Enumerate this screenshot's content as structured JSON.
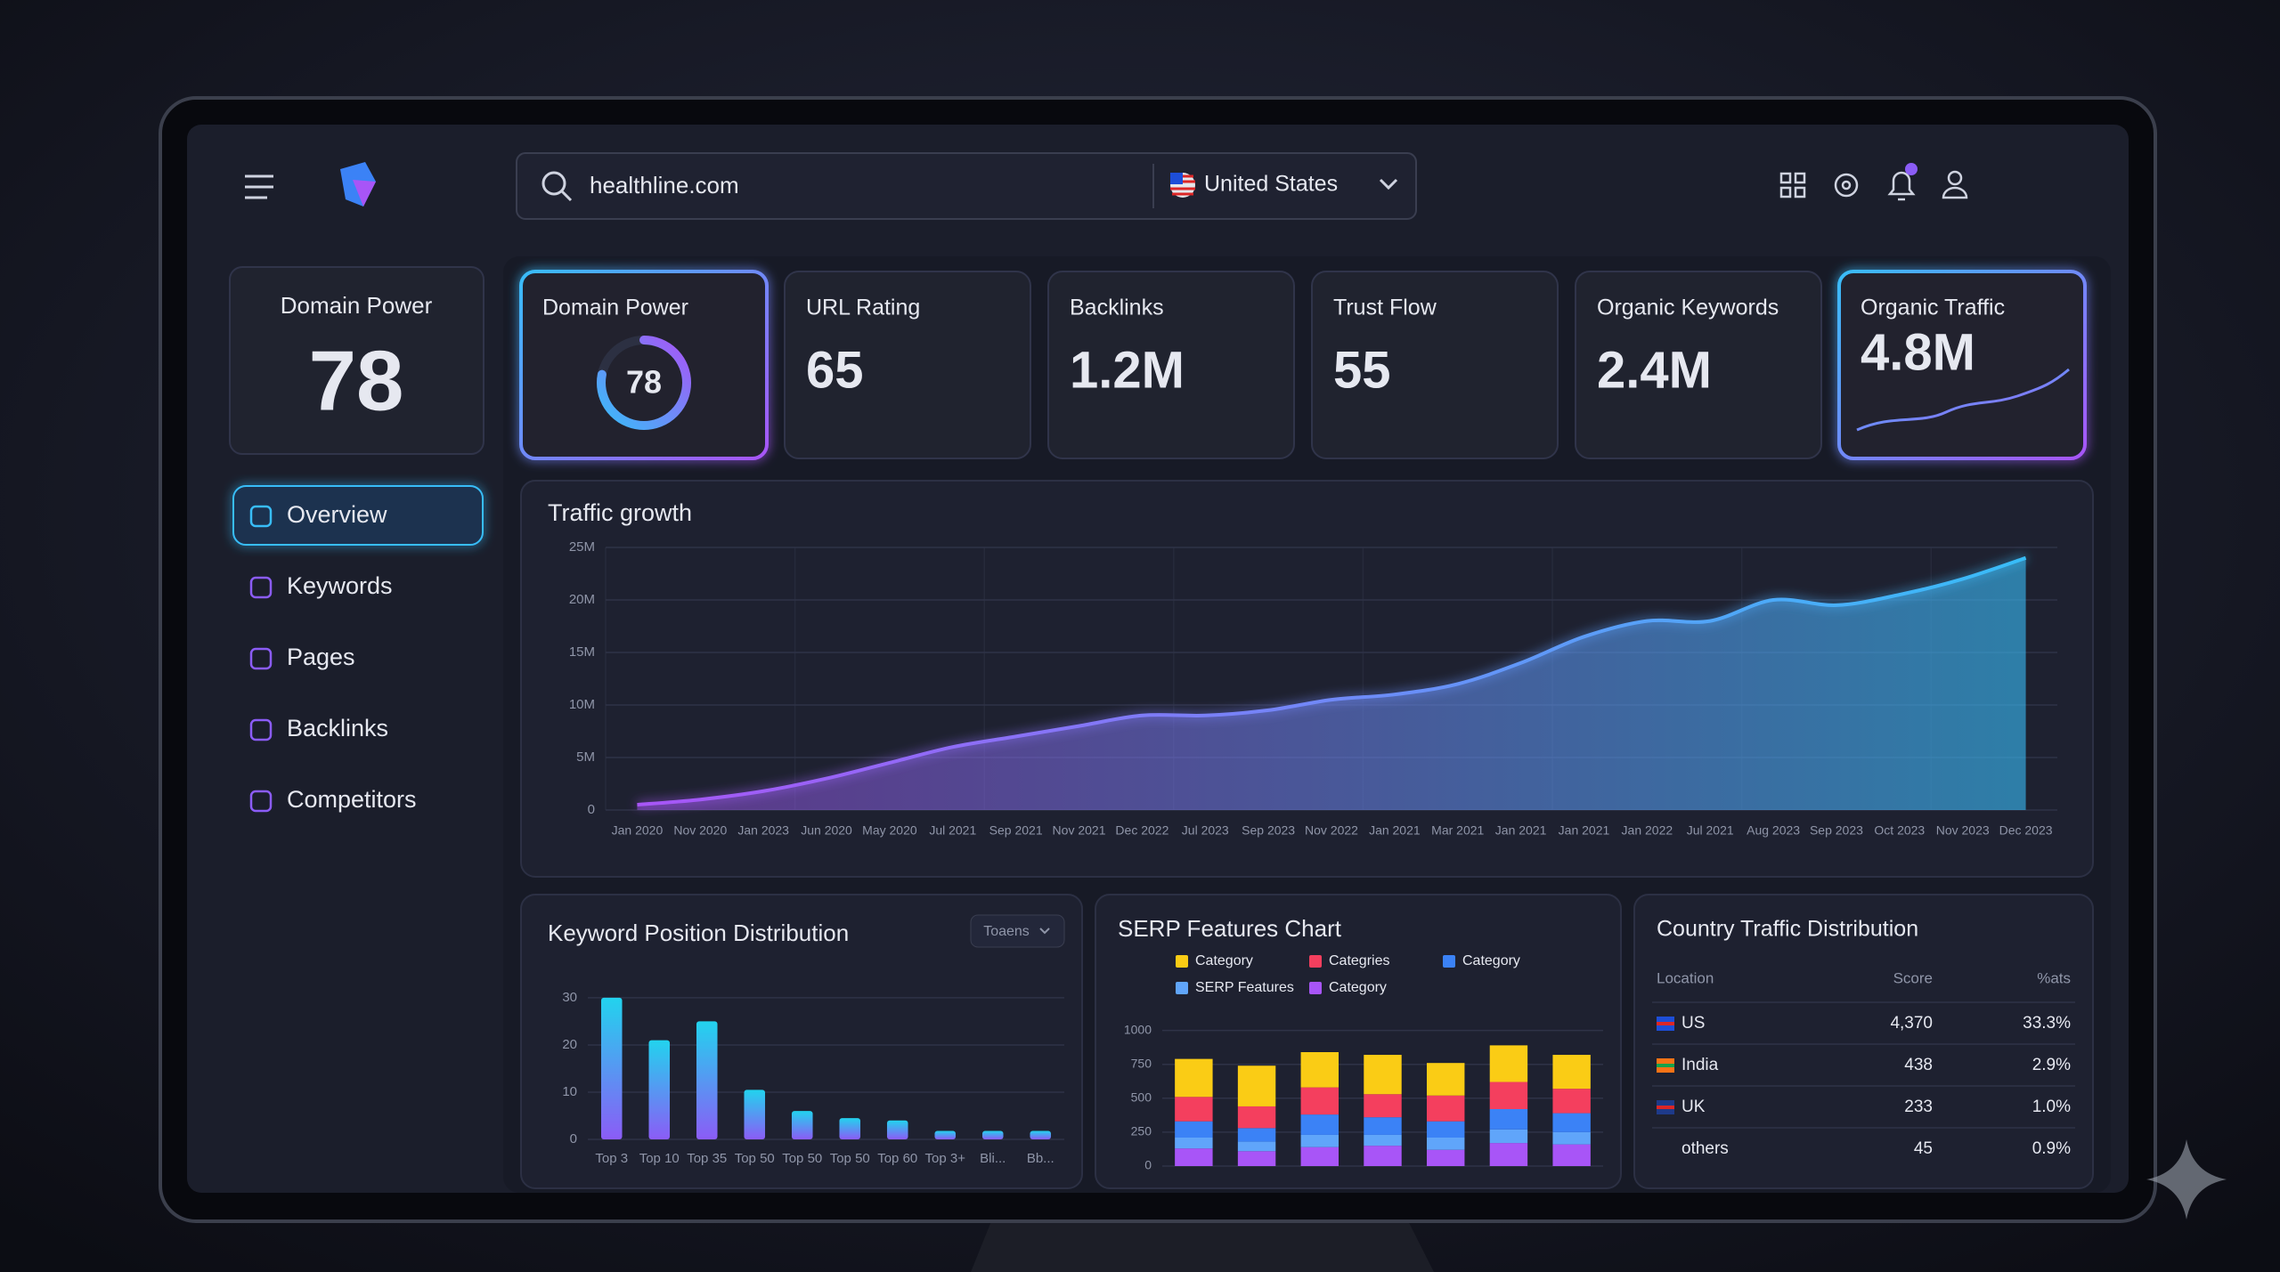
{
  "header": {
    "search": "healthline.com",
    "country": "United States"
  },
  "sidebar": {
    "card": {
      "label": "Domain Power",
      "value": 78
    },
    "nav": [
      "Overview",
      "Keywords",
      "Pages",
      "Backlinks",
      "Competitors"
    ]
  },
  "kpis": [
    {
      "label": "Domain Power",
      "value": 78
    },
    {
      "label": "URL Rating",
      "value": 65
    },
    {
      "label": "Backlinks",
      "value": "1.2M"
    },
    {
      "label": "Trust Flow",
      "value": 55
    },
    {
      "label": "Organic Keywords",
      "value": "2.4M"
    },
    {
      "label": "Organic Traffic",
      "value": "4.8M"
    }
  ],
  "chart_data": [
    {
      "type": "area",
      "title": "Traffic growth",
      "categories": [
        "Jan 2020",
        "Nov 2020",
        "Jan 2023",
        "Jun 2020",
        "May 2020",
        "Jul 2021",
        "Sep 2021",
        "Nov 2021",
        "Dec 2022",
        "Jul 2023",
        "Sep 2023",
        "Nov 2022",
        "Jan 2021",
        "Mar 2021",
        "Jan 2021",
        "Jan 2021",
        "Jan 2022",
        "Jul 2021",
        "Aug 2023",
        "Sep 2023",
        "Oct 2023",
        "Nov 2023",
        "Dec 2023"
      ],
      "values": [
        0.5,
        1,
        1.8,
        3,
        4.5,
        6,
        7,
        8,
        9,
        9,
        9.5,
        10.5,
        11,
        12,
        14,
        16.5,
        18,
        18,
        20,
        19.5,
        20.5,
        22,
        24
      ],
      "ylim": [
        0,
        25
      ],
      "yticks": [
        0,
        {
          "value": 5,
          "label": "5M"
        },
        {
          "value": 10,
          "label": "10M"
        },
        {
          "value": 15,
          "label": "15M"
        },
        {
          "value": 20,
          "label": "20M"
        },
        {
          "value": 25,
          "label": "25M"
        }
      ],
      "colors": [
        "#a855f7",
        "#38bdf8"
      ],
      "grid": true
    },
    {
      "type": "bar",
      "title": "Keyword Position Distribution",
      "dropdown": "Toaens",
      "categories": [
        "Top 3",
        "Top 10",
        "Top 35",
        "Top 50",
        "Top 50",
        "Top 50",
        "Top 60",
        "Top 3+",
        "Bli...",
        "Bb..."
      ],
      "values": [
        30,
        21,
        25,
        10.5,
        6,
        4.5,
        4,
        1.8,
        1.8,
        1.8
      ],
      "ylim": [
        0,
        33
      ],
      "yticks": [
        0,
        10,
        20,
        30
      ],
      "colors": [
        "#22d3ee",
        "#8b5cf6"
      ],
      "grid": true
    },
    {
      "type": "stacked_bar",
      "title": "SERP Features Chart",
      "categories": [
        null,
        null,
        null,
        null,
        null,
        null,
        null
      ],
      "series": [
        {
          "name": "Category",
          "color": "#facc15",
          "values": [
            280,
            300,
            260,
            290,
            240,
            270,
            250
          ]
        },
        {
          "name": "Categries",
          "color": "#f43f5e",
          "values": [
            180,
            160,
            200,
            170,
            190,
            200,
            180
          ]
        },
        {
          "name": "Category",
          "color": "#3b82f6",
          "values": [
            120,
            100,
            150,
            130,
            120,
            150,
            140
          ]
        },
        {
          "name": "SERP Features",
          "color": "#60a5fa",
          "values": [
            80,
            70,
            90,
            80,
            90,
            100,
            90
          ]
        },
        {
          "name": "Category",
          "color": "#a855f7",
          "values": [
            130,
            110,
            140,
            150,
            120,
            170,
            160
          ]
        }
      ],
      "ylim": [
        0,
        1050
      ],
      "yticks": [
        0,
        250,
        500,
        750,
        1000
      ],
      "grid": true
    }
  ],
  "table": {
    "title": "Country Traffic Distribution",
    "columns": [
      "Location",
      "Score",
      "%ats"
    ],
    "rows": [
      [
        "US",
        "4,370",
        "33.3%"
      ],
      [
        "India",
        "438",
        "2.9%"
      ],
      [
        "UK",
        "233",
        "1.0%"
      ],
      [
        "others",
        "45",
        "0.9%"
      ]
    ]
  }
}
